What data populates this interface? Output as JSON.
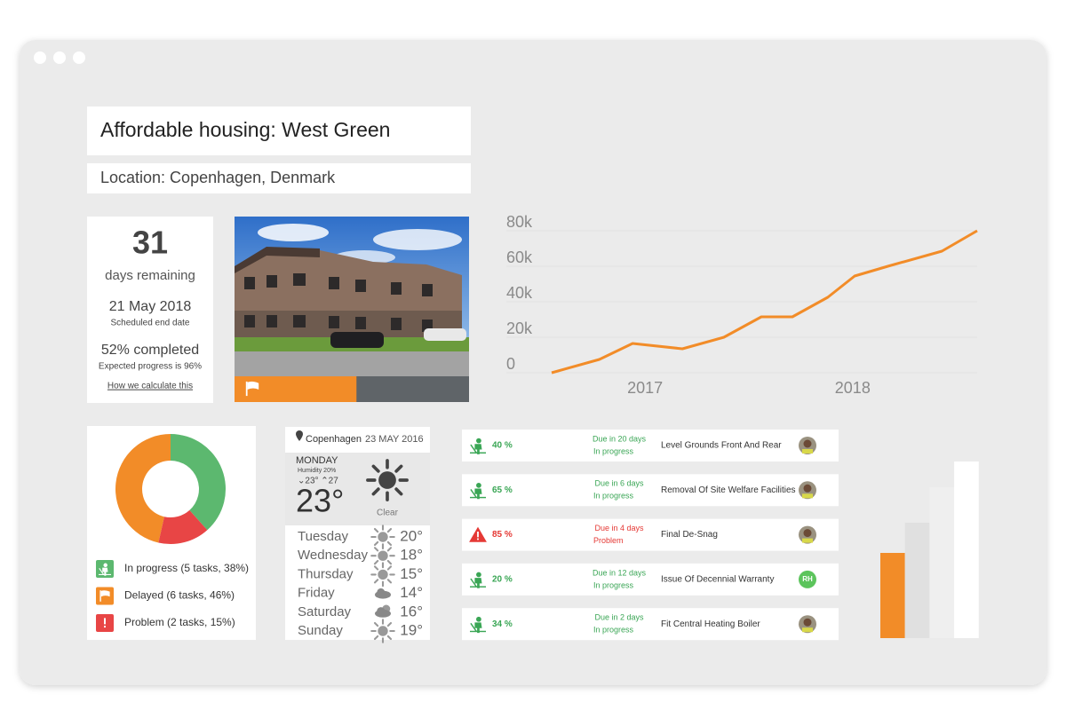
{
  "header": {
    "title": "Affordable housing: West Green",
    "location": "Location: Copenhagen, Denmark"
  },
  "summary": {
    "days": 31,
    "days_label": "days remaining",
    "end_date": "21 May 2018",
    "end_date_label": "Scheduled end date",
    "completed": "52% completed",
    "expected": "Expected progress is 96%",
    "link": "How we calculate this"
  },
  "photo": {
    "progress": 52,
    "progress_color": "#f28c28"
  },
  "weather": {
    "location": "Copenhagen",
    "date": "23 MAY 2016",
    "day": "MONDAY",
    "humidity": "Humidity 20%",
    "low_high": "⌄23° ⌃27",
    "current": "23°",
    "condition": "Clear",
    "forecast": [
      {
        "day": "Tuesday",
        "temp": "20°",
        "icon": "sun"
      },
      {
        "day": "Wednesday",
        "temp": "18°",
        "icon": "sun"
      },
      {
        "day": "Thursday",
        "temp": "15°",
        "icon": "sun"
      },
      {
        "day": "Friday",
        "temp": "14°",
        "icon": "cloud"
      },
      {
        "day": "Saturday",
        "temp": "16°",
        "icon": "suncloud"
      },
      {
        "day": "Sunday",
        "temp": "19°",
        "icon": "sun"
      }
    ]
  },
  "tasks": [
    {
      "percent": "40 %",
      "due": "Due in 20 days",
      "status": "In progress",
      "name": "Level Grounds Front And Rear",
      "icon": "worker",
      "color": "#3aa655"
    },
    {
      "percent": "65 %",
      "due": "Due in 6 days",
      "status": "In progress",
      "name": "Removal Of Site Welfare Facilities",
      "icon": "worker",
      "color": "#3aa655"
    },
    {
      "percent": "85 %",
      "due": "Due in 4 days",
      "status": "Problem",
      "name": "Final De-Snag",
      "icon": "warning",
      "color": "#e53935"
    },
    {
      "percent": "20 %",
      "due": "Due in 12 days",
      "status": "In progress",
      "name": "Issue Of Decennial Warranty",
      "icon": "worker",
      "color": "#3aa655",
      "initials": "RH"
    },
    {
      "percent": "34 %",
      "due": "Due in 2 days",
      "status": "In progress",
      "name": "Fit Central Heating Boiler",
      "icon": "worker",
      "color": "#3aa655"
    }
  ],
  "chart_data": [
    {
      "type": "line",
      "color": "#f28c28",
      "grid": true,
      "x": [
        2016.55,
        2016.78,
        2016.94,
        2017.18,
        2017.38,
        2017.56,
        2017.71,
        2017.88,
        2018.01,
        2018.17,
        2018.43,
        2018.6
      ],
      "values": [
        0,
        7500,
        16500,
        13500,
        20000,
        31500,
        31500,
        42500,
        54500,
        60000,
        68500,
        80000
      ],
      "xlim": [
        2016.55,
        2018.6
      ],
      "xticks": [
        2017,
        2018
      ],
      "ylim": [
        0,
        80000
      ],
      "yticks": [
        0,
        {
          "value": 20000,
          "label": "20k"
        },
        {
          "value": 40000,
          "label": "40k"
        },
        {
          "value": 60000,
          "label": "60k"
        },
        {
          "value": 80000,
          "label": "80k"
        }
      ]
    },
    {
      "type": "pie",
      "categories": [
        "In progress (5 tasks, 38%)",
        "Delayed (6 tasks, 46%)",
        "Problem (2 tasks, 15%)"
      ],
      "values": [
        38,
        46,
        15
      ],
      "colors": [
        "#5cb86f",
        "#f28c28",
        "#e84545"
      ],
      "icons": [
        "worker",
        "flag",
        "warning"
      ]
    },
    {
      "type": "bar",
      "values": [
        96,
        130,
        170,
        199
      ],
      "colors": [
        "#f28c28",
        "#e0e0e0",
        "#efefef",
        "#ffffff"
      ],
      "ylim": [
        0,
        200
      ]
    }
  ]
}
